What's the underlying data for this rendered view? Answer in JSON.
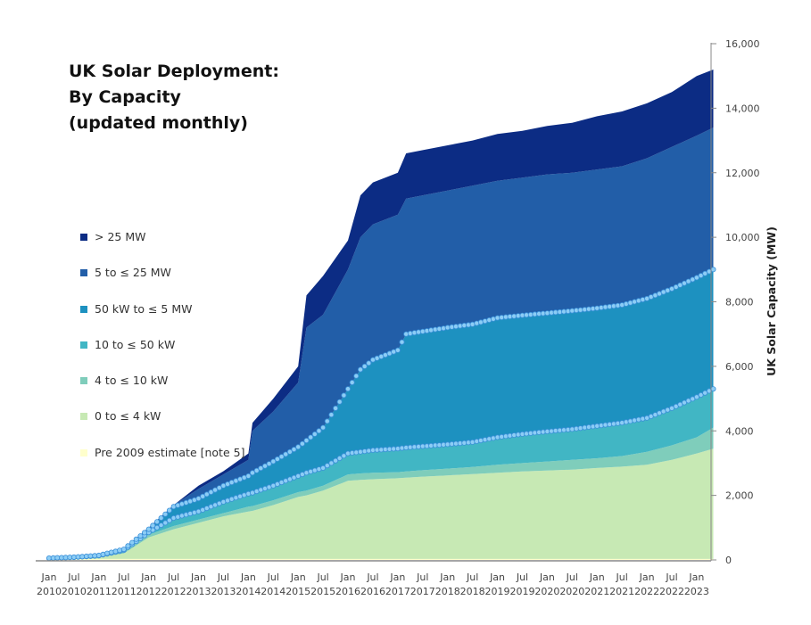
{
  "chart_data": {
    "type": "area",
    "stacked": true,
    "title": "UK Solar Deployment:\nBy Capacity\n(updated monthly)",
    "xlabel": "",
    "ylabel": "UK Solar Capacity (MW)",
    "ylim": [
      0,
      16000
    ],
    "y_ticks": [
      "0",
      "2,000",
      "4,000",
      "6,000",
      "8,000",
      "10,000",
      "12,000",
      "14,000",
      "16,000"
    ],
    "y_axis_side": "right",
    "grid": false,
    "legend_placement": "left",
    "x_tick_labels": [
      [
        "Jan",
        "2010"
      ],
      [
        "Jul",
        "2010"
      ],
      [
        "Jan",
        "2011"
      ],
      [
        "Jul",
        "2011"
      ],
      [
        "Jan",
        "2012"
      ],
      [
        "Jul",
        "2012"
      ],
      [
        "Jan",
        "2013"
      ],
      [
        "Jul",
        "2013"
      ],
      [
        "Jan",
        "2014"
      ],
      [
        "Jul",
        "2014"
      ],
      [
        "Jan",
        "2015"
      ],
      [
        "Jul",
        "2015"
      ],
      [
        "Jan",
        "2016"
      ],
      [
        "Jul",
        "2016"
      ],
      [
        "Jan",
        "2017"
      ],
      [
        "Jul",
        "2017"
      ],
      [
        "Jan",
        "2018"
      ],
      [
        "Jul",
        "2018"
      ],
      [
        "Jan",
        "2019"
      ],
      [
        "Jul",
        "2019"
      ],
      [
        "Jan",
        "2020"
      ],
      [
        "Jul",
        "2020"
      ],
      [
        "Jan",
        "2021"
      ],
      [
        "Jul",
        "2021"
      ],
      [
        "Jan",
        "2022"
      ],
      [
        "Jul",
        "2022"
      ],
      [
        "Jan",
        "2023"
      ]
    ],
    "x": [
      "2010-01",
      "2010-07",
      "2011-01",
      "2011-07",
      "2012-01",
      "2012-07",
      "2013-01",
      "2013-07",
      "2014-01",
      "2014-02",
      "2014-07",
      "2015-01",
      "2015-03",
      "2015-07",
      "2016-01",
      "2016-04",
      "2016-07",
      "2017-01",
      "2017-03",
      "2017-07",
      "2018-01",
      "2018-07",
      "2019-01",
      "2019-07",
      "2020-01",
      "2020-07",
      "2021-01",
      "2021-07",
      "2022-01",
      "2022-07",
      "2023-01",
      "2023-05"
    ],
    "series": [
      {
        "name": "Pre 2009 estimate [note 5]",
        "color": "#ffffcc",
        "values": [
          30,
          30,
          30,
          30,
          30,
          30,
          30,
          30,
          30,
          30,
          30,
          30,
          30,
          30,
          30,
          30,
          30,
          30,
          30,
          30,
          30,
          30,
          30,
          30,
          30,
          30,
          30,
          30,
          30,
          30,
          30,
          30
        ]
      },
      {
        "name": "0 to ≤ 4 kW",
        "color": "#c7e9b4",
        "values": [
          10,
          30,
          60,
          170,
          670,
          920,
          1120,
          1320,
          1470,
          1490,
          1670,
          1920,
          1970,
          2120,
          2420,
          2450,
          2470,
          2500,
          2520,
          2550,
          2590,
          2630,
          2670,
          2710,
          2740,
          2770,
          2820,
          2860,
          2920,
          3070,
          3270,
          3420
        ]
      },
      {
        "name": "4 to ≤ 10 kW",
        "color": "#7fcdbb",
        "values": [
          5,
          10,
          20,
          50,
          80,
          100,
          100,
          100,
          150,
          150,
          150,
          150,
          150,
          150,
          200,
          200,
          200,
          190,
          190,
          200,
          210,
          220,
          250,
          260,
          280,
          300,
          300,
          330,
          400,
          450,
          500,
          650
        ]
      },
      {
        "name": "10 to ≤ 50 kW",
        "color": "#41b6c4",
        "markers": true,
        "values": [
          5,
          10,
          20,
          50,
          70,
          250,
          250,
          350,
          400,
          410,
          450,
          500,
          550,
          550,
          650,
          670,
          700,
          730,
          740,
          740,
          750,
          770,
          850,
          900,
          930,
          950,
          1000,
          1030,
          1050,
          1150,
          1250,
          1200
        ]
      },
      {
        "name": "50 kW to ≤ 5 MW",
        "color": "#1d91c0",
        "markers": true,
        "values": [
          5,
          5,
          10,
          30,
          100,
          350,
          400,
          500,
          550,
          620,
          750,
          900,
          1000,
          1250,
          2000,
          2550,
          2800,
          3050,
          3520,
          3560,
          3620,
          3650,
          3700,
          3680,
          3670,
          3670,
          3650,
          3650,
          3700,
          3700,
          3700,
          3700
        ]
      },
      {
        "name": "5 to ≤ 25 MW",
        "color": "#225ea8",
        "values": [
          5,
          5,
          10,
          20,
          50,
          50,
          300,
          350,
          500,
          1300,
          1550,
          2000,
          3500,
          3500,
          3700,
          4100,
          4200,
          4200,
          4200,
          4220,
          4250,
          4300,
          4250,
          4270,
          4300,
          4280,
          4300,
          4300,
          4350,
          4400,
          4400,
          4400
        ]
      },
      {
        "name": "> 25 MW",
        "color": "#0c2c84",
        "values": [
          0,
          0,
          0,
          10,
          0,
          0,
          100,
          100,
          200,
          250,
          400,
          500,
          1000,
          1200,
          900,
          1300,
          1300,
          1300,
          1400,
          1400,
          1400,
          1400,
          1450,
          1450,
          1500,
          1550,
          1650,
          1700,
          1700,
          1700,
          1850,
          1800
        ]
      }
    ],
    "marker_color": "#8ccdf5"
  }
}
